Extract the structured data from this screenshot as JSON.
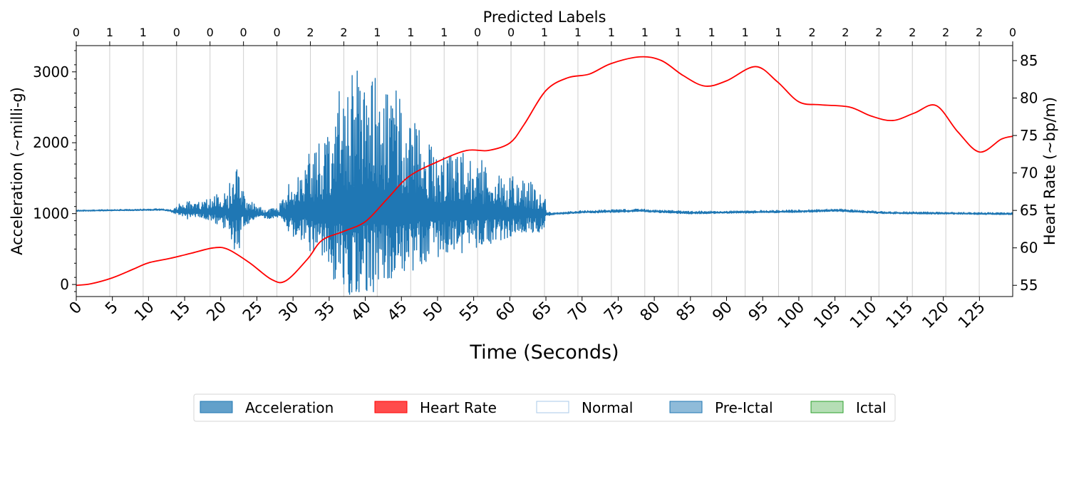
{
  "chart_data": {
    "type": "line",
    "top_axis_label": "Predicted Labels",
    "xlabel": "Time (Seconds)",
    "ylabel_left": "Acceleration (~milli-g)",
    "ylabel_right": "Heart Rate (~bp/m)",
    "xlim": [
      0,
      129.6
    ],
    "ylim_left": [
      -170,
      3370
    ],
    "ylim_right": [
      53.5,
      87
    ],
    "x_ticks": [
      0,
      5,
      10,
      15,
      20,
      25,
      30,
      35,
      40,
      45,
      50,
      55,
      60,
      65,
      70,
      75,
      80,
      85,
      90,
      95,
      100,
      105,
      110,
      115,
      120,
      125
    ],
    "y_ticks_left": [
      0,
      1000,
      2000,
      3000
    ],
    "y_ticks_right": [
      55,
      60,
      65,
      70,
      75,
      80,
      85
    ],
    "predicted_labels": [
      "0",
      "1",
      "1",
      "0",
      "0",
      "0",
      "0",
      "2",
      "2",
      "1",
      "1",
      "1",
      "0",
      "0",
      "1",
      "1",
      "1",
      "1",
      "1",
      "1",
      "1",
      "1",
      "2",
      "2",
      "2",
      "2",
      "2",
      "2",
      "0"
    ],
    "grid": "vertical",
    "legend_position": "below",
    "legend": [
      {
        "label": "Acceleration",
        "color": "#1f77b4",
        "opacity": 0.7
      },
      {
        "label": "Heart Rate",
        "color": "#ff0000",
        "opacity": 0.7
      },
      {
        "label": "Normal",
        "color": "#ffffff",
        "edge": "#a8c8e8",
        "opacity": 1
      },
      {
        "label": "Pre-Ictal",
        "color": "#1f77b4",
        "opacity": 0.5
      },
      {
        "label": "Ictal",
        "color": "#2ca02c",
        "opacity": 0.35
      }
    ],
    "series": [
      {
        "name": "Heart Rate",
        "axis": "right",
        "color": "#ff0000",
        "x": [
          0,
          2,
          5,
          8,
          10,
          13,
          16,
          19,
          21,
          24,
          27,
          29,
          32,
          34,
          37,
          40,
          43,
          46,
          50,
          54,
          57,
          60,
          62,
          65,
          68,
          71,
          74,
          78,
          81,
          84,
          87,
          90,
          94,
          97,
          100,
          103,
          107,
          110,
          113,
          116,
          119,
          122,
          125,
          128,
          129.6
        ],
        "values": [
          55,
          55.2,
          56,
          57.2,
          58,
          58.6,
          59.3,
          60,
          59.8,
          58,
          55.8,
          55.6,
          58.5,
          61,
          62.2,
          63.5,
          66.5,
          69.5,
          71.5,
          73,
          73,
          74,
          76.5,
          81,
          82.7,
          83.2,
          84.6,
          85.5,
          85,
          83,
          81.6,
          82.3,
          84.2,
          82.2,
          79.5,
          79.1,
          78.8,
          77.6,
          77,
          78,
          79,
          75.5,
          72.8,
          74.5,
          74.9
        ]
      },
      {
        "name": "Acceleration",
        "axis": "left",
        "color": "#1f77b4",
        "baseline": [
          [
            0,
            1040
          ],
          [
            12,
            1055
          ],
          [
            13.5,
            1030
          ],
          [
            22,
            1010
          ],
          [
            27,
            985
          ],
          [
            30,
            1000
          ],
          [
            40,
            1060
          ],
          [
            50,
            1000
          ],
          [
            65,
            990
          ],
          [
            70,
            1020
          ],
          [
            78,
            1040
          ],
          [
            85,
            1010
          ],
          [
            100,
            1030
          ],
          [
            105,
            1045
          ],
          [
            112,
            1010
          ],
          [
            129.6,
            995
          ]
        ],
        "amplitude": [
          [
            0,
            12
          ],
          [
            13,
            14
          ],
          [
            13.6,
            70
          ],
          [
            15,
            180
          ],
          [
            17,
            140
          ],
          [
            19,
            210
          ],
          [
            20,
            420
          ],
          [
            21,
            280
          ],
          [
            21.6,
            800
          ],
          [
            22.5,
            1000
          ],
          [
            23,
            320
          ],
          [
            25,
            110
          ],
          [
            28,
            80
          ],
          [
            28.8,
            350
          ],
          [
            30,
            600
          ],
          [
            32,
            820
          ],
          [
            34,
            1100
          ],
          [
            36,
            1650
          ],
          [
            38,
            1950
          ],
          [
            40,
            2050
          ],
          [
            42,
            1800
          ],
          [
            44,
            1750
          ],
          [
            46,
            1450
          ],
          [
            48,
            1150
          ],
          [
            50,
            1000
          ],
          [
            52,
            950
          ],
          [
            54,
            900
          ],
          [
            56,
            800
          ],
          [
            58,
            650
          ],
          [
            60,
            560
          ],
          [
            62,
            480
          ],
          [
            64,
            430
          ],
          [
            64.8,
            300
          ],
          [
            65.1,
            35
          ],
          [
            66,
            20
          ],
          [
            75,
            26
          ],
          [
            90,
            22
          ],
          [
            105,
            24
          ],
          [
            120,
            18
          ],
          [
            129.6,
            18
          ]
        ]
      }
    ]
  }
}
